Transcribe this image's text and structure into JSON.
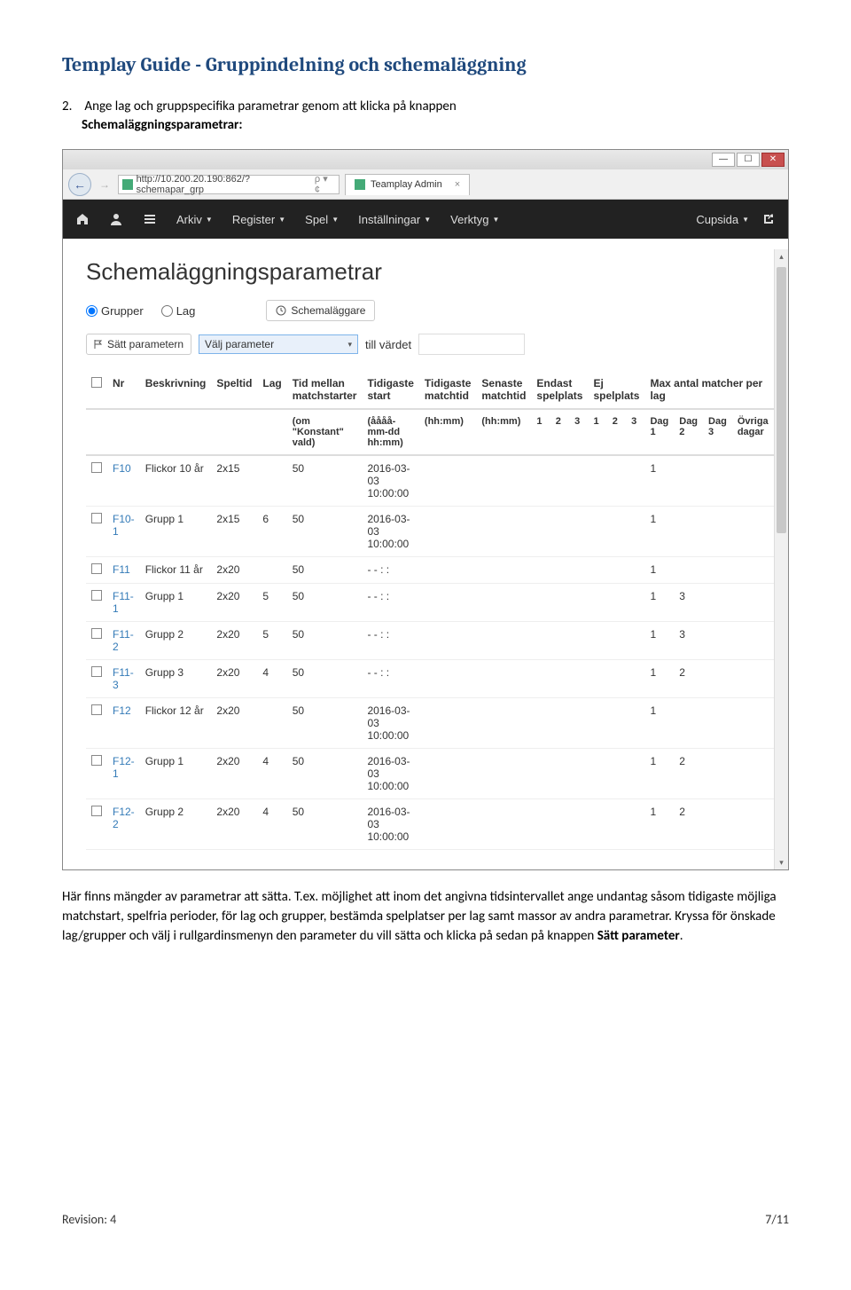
{
  "doc": {
    "title": "Templay Guide - Gruppindelning och schemaläggning",
    "intro_num": "2.",
    "intro_text_1": "Ange lag och gruppspecifika parametrar genom att klicka på knappen ",
    "intro_bold": "Schemaläggningsparametrar:",
    "outro_1": "Här finns mängder av parametrar att sätta. T.ex. möjlighet att inom det angivna tidsintervallet ange undantag såsom tidigaste möjliga matchstart, spelfria perioder, för lag och grupper, bestämda spelplatser per lag samt massor av andra parametrar. Kryssa för önskade lag/grupper och välj i rullgardinsmenyn den parameter du vill sätta och klicka på sedan på knappen ",
    "outro_bold": "Sätt parameter",
    "outro_2": ".",
    "footer_left": "Revision: 4",
    "footer_right": "7/11"
  },
  "browser": {
    "url": "http://10.200.20.190:862/?schemapar_grp",
    "url_suffix": "ρ ▾ ¢",
    "tab_title": "Teamplay Admin",
    "win_min": "—",
    "win_max": "☐",
    "win_close": "✕"
  },
  "navbar": {
    "items": [
      "Arkiv",
      "Register",
      "Spel",
      "Inställningar",
      "Verktyg"
    ],
    "right": "Cupsida"
  },
  "panel": {
    "title": "Schemaläggningsparametrar",
    "radio_grupper": "Grupper",
    "radio_lag": "Lag",
    "btn_schemalaggare": "Schemaläggare",
    "btn_satt": "Sätt parametern",
    "select_placeholder": "Välj parameter",
    "till_vardet": "till värdet"
  },
  "table": {
    "headers": {
      "nr": "Nr",
      "beskrivning": "Beskrivning",
      "speltid": "Speltid",
      "lag": "Lag",
      "tid_mellan": "Tid mellan matchstarter",
      "tidigaste_start": "Tidigaste start",
      "tidigaste_matchtid": "Tidigaste matchtid",
      "senaste_matchtid": "Senaste matchtid",
      "endast_spelplats": "Endast spelplats",
      "ej_spelplats": "Ej spelplats",
      "max_antal": "Max antal matcher per lag"
    },
    "subheaders": {
      "tid_mellan": "(om \"Konstant\" vald)",
      "tidigaste_start": "(åååå-mm-dd hh:mm)",
      "tidigaste_matchtid": "(hh:mm)",
      "senaste_matchtid": "(hh:mm)",
      "n1": "1",
      "n2": "2",
      "n3": "3",
      "dag1": "Dag 1",
      "dag2": "Dag 2",
      "dag3": "Dag 3",
      "ovriga": "Övriga dagar"
    },
    "rows": [
      {
        "nr": "F10",
        "beskr": "Flickor 10 år",
        "speltid": "2x15",
        "lag": "",
        "tm": "50",
        "ts": "2016-03-03 10:00:00",
        "d1": "1",
        "d2": "",
        "d3": "",
        "ov": ""
      },
      {
        "nr": "F10-1",
        "beskr": "Grupp 1",
        "speltid": "2x15",
        "lag": "6",
        "tm": "50",
        "ts": "2016-03-03 10:00:00",
        "d1": "1",
        "d2": "",
        "d3": "",
        "ov": ""
      },
      {
        "nr": "F11",
        "beskr": "Flickor 11 år",
        "speltid": "2x20",
        "lag": "",
        "tm": "50",
        "ts": "- - : :",
        "d1": "1",
        "d2": "",
        "d3": "",
        "ov": ""
      },
      {
        "nr": "F11-1",
        "beskr": "Grupp 1",
        "speltid": "2x20",
        "lag": "5",
        "tm": "50",
        "ts": "- - : :",
        "d1": "1",
        "d2": "3",
        "d3": "",
        "ov": ""
      },
      {
        "nr": "F11-2",
        "beskr": "Grupp 2",
        "speltid": "2x20",
        "lag": "5",
        "tm": "50",
        "ts": "- - : :",
        "d1": "1",
        "d2": "3",
        "d3": "",
        "ov": ""
      },
      {
        "nr": "F11-3",
        "beskr": "Grupp 3",
        "speltid": "2x20",
        "lag": "4",
        "tm": "50",
        "ts": "- - : :",
        "d1": "1",
        "d2": "2",
        "d3": "",
        "ov": ""
      },
      {
        "nr": "F12",
        "beskr": "Flickor 12 år",
        "speltid": "2x20",
        "lag": "",
        "tm": "50",
        "ts": "2016-03-03 10:00:00",
        "d1": "1",
        "d2": "",
        "d3": "",
        "ov": ""
      },
      {
        "nr": "F12-1",
        "beskr": "Grupp 1",
        "speltid": "2x20",
        "lag": "4",
        "tm": "50",
        "ts": "2016-03-03 10:00:00",
        "d1": "1",
        "d2": "2",
        "d3": "",
        "ov": ""
      },
      {
        "nr": "F12-2",
        "beskr": "Grupp 2",
        "speltid": "2x20",
        "lag": "4",
        "tm": "50",
        "ts": "2016-03-03 10:00:00",
        "d1": "1",
        "d2": "2",
        "d3": "",
        "ov": ""
      }
    ]
  }
}
